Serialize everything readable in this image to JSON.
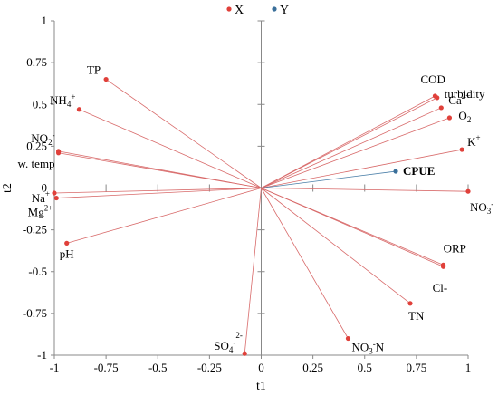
{
  "chart_data": {
    "type": "scatter",
    "xlabel": "t1",
    "ylabel": "t2",
    "xlim": [
      -1,
      1
    ],
    "ylim": [
      -1,
      1
    ],
    "x_ticks": [
      -1,
      -0.75,
      -0.5,
      -0.25,
      0,
      0.25,
      0.5,
      0.75,
      1
    ],
    "y_ticks": [
      -1,
      -0.75,
      -0.5,
      -0.25,
      0,
      0.25,
      0.5,
      0.75,
      1
    ],
    "x_tick_labels": [
      "-1",
      "-0.75",
      "-0.5",
      "-0.25",
      "0",
      "0.25",
      "0.5",
      "0.75",
      "1"
    ],
    "y_tick_labels": [
      "-1",
      "-0.75",
      "-0.5",
      "-0.25",
      "0",
      "0.25",
      "0.5",
      "0.75",
      "1"
    ],
    "legend_position": "top-center",
    "grid": false,
    "series": [
      {
        "name": "X",
        "color": "#e0403a",
        "line_color": "#d86a6a",
        "points": [
          {
            "label": "TP",
            "x": -0.75,
            "y": 0.65
          },
          {
            "label": "NH4+",
            "x": -0.88,
            "y": 0.47
          },
          {
            "label": "NO2-",
            "x": -0.98,
            "y": 0.22
          },
          {
            "label": "w. temp",
            "x": -0.98,
            "y": 0.21
          },
          {
            "label": "Na+",
            "x": -1.0,
            "y": -0.03
          },
          {
            "label": "Mg2+",
            "x": -0.99,
            "y": -0.06
          },
          {
            "label": "pH",
            "x": -0.94,
            "y": -0.33
          },
          {
            "label": "COD",
            "x": 0.84,
            "y": 0.55
          },
          {
            "label": "turbidity",
            "x": 0.85,
            "y": 0.54
          },
          {
            "label": "Ca2+",
            "x": 0.87,
            "y": 0.48
          },
          {
            "label": "O2",
            "x": 0.91,
            "y": 0.42
          },
          {
            "label": "K+",
            "x": 0.97,
            "y": 0.23
          },
          {
            "label": "NO3-",
            "x": 1.0,
            "y": -0.02
          },
          {
            "label": "ORP",
            "x": 0.88,
            "y": -0.46
          },
          {
            "label": "Cl-",
            "x": 0.88,
            "y": -0.47
          },
          {
            "label": "TN",
            "x": 0.72,
            "y": -0.69
          },
          {
            "label": "NO3-N",
            "x": 0.42,
            "y": -0.9
          },
          {
            "label": "SO42-",
            "x": -0.08,
            "y": -0.99
          }
        ]
      },
      {
        "name": "Y",
        "color": "#3a6f9a",
        "line_color": "#4a7fa8",
        "points": [
          {
            "label": "CPUE",
            "x": 0.65,
            "y": 0.1
          }
        ]
      }
    ]
  }
}
